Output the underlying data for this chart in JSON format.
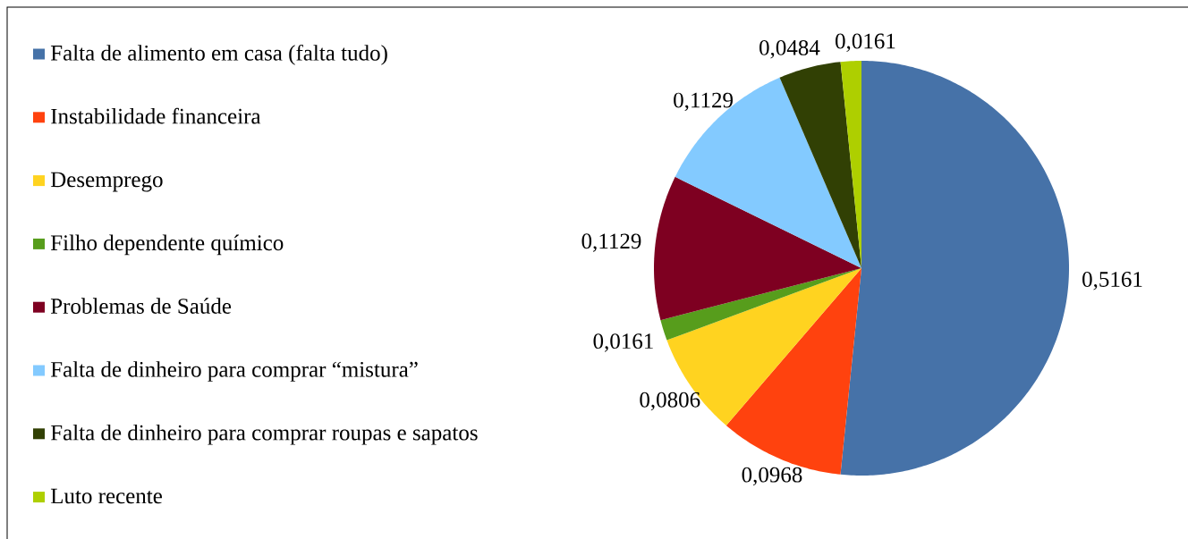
{
  "chart_data": {
    "type": "pie",
    "categories": [
      "Falta de alimento em casa (falta tudo)",
      "Instabilidade financeira",
      "Desemprego",
      "Filho dependente químico",
      "Problemas de Saúde",
      "Falta de dinheiro para comprar “mistura”",
      "Falta de dinheiro para comprar roupas e sapatos",
      "Luto recente"
    ],
    "values": [
      0.5161,
      0.0968,
      0.0806,
      0.0161,
      0.1129,
      0.1129,
      0.0484,
      0.0161
    ],
    "value_labels": [
      "0,5161",
      "0,0968",
      "0,0806",
      "0,0161",
      "0,1129",
      "0,1129",
      "0,0484",
      "0,0161"
    ],
    "colors": [
      "#4672a8",
      "#ff420e",
      "#ffd320",
      "#579d1c",
      "#7e0021",
      "#83caff",
      "#314004",
      "#aecf00"
    ],
    "legend": "left"
  }
}
